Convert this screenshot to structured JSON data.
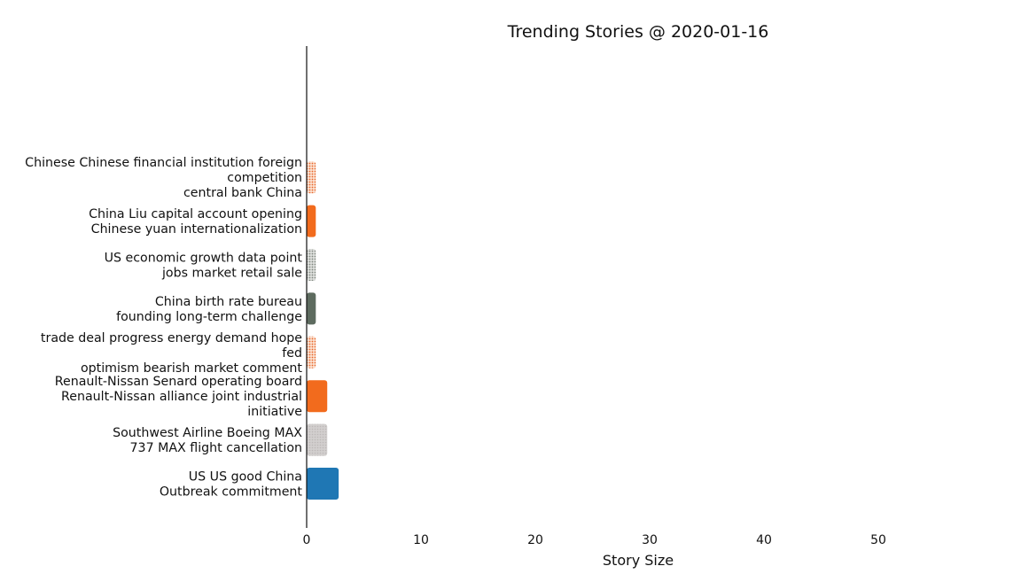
{
  "chart_data": {
    "type": "bar",
    "orientation": "horizontal",
    "title": "Trending Stories @ 2020-01-16",
    "xlabel": "Story Size",
    "ylabel": "",
    "xlim": [
      0,
      62
    ],
    "xticks": [
      "0",
      "10",
      "20",
      "30",
      "40",
      "50"
    ],
    "grid": false,
    "categories": [
      {
        "lines": [
          "US US good China",
          "Outbreak commitment"
        ],
        "value": 2.8,
        "color": "#1f77b4",
        "pattern": "solid"
      },
      {
        "lines": [
          "Southwest Airline Boeing MAX",
          "737 MAX flight cancellation"
        ],
        "value": 1.8,
        "color": "#c9c5c4",
        "pattern": "dots-light"
      },
      {
        "lines": [
          "Renault-Nissan Senard operating board",
          "Renault-Nissan alliance joint industrial",
          "initiative"
        ],
        "value": 1.8,
        "color": "#f26b1d",
        "pattern": "solid"
      },
      {
        "lines": [
          "trade deal progress energy demand hope",
          "fed",
          "optimism bearish market comment"
        ],
        "value": 0.8,
        "color": "#e8662a",
        "pattern": "dots-orange"
      },
      {
        "lines": [
          "China birth rate bureau",
          "founding long-term challenge"
        ],
        "value": 0.8,
        "color": "#5d6b5f",
        "pattern": "solid"
      },
      {
        "lines": [
          "US economic growth data point",
          "jobs market retail sale"
        ],
        "value": 0.8,
        "color": "#8f958e",
        "pattern": "dots-gray"
      },
      {
        "lines": [
          "China Liu capital account opening",
          "Chinese yuan internationalization"
        ],
        "value": 0.8,
        "color": "#f26b1d",
        "pattern": "solid"
      },
      {
        "lines": [
          "Chinese Chinese financial institution foreign",
          "competition",
          "central bank China"
        ],
        "value": 0.8,
        "color": "#e8662a",
        "pattern": "dots-orange"
      }
    ]
  }
}
